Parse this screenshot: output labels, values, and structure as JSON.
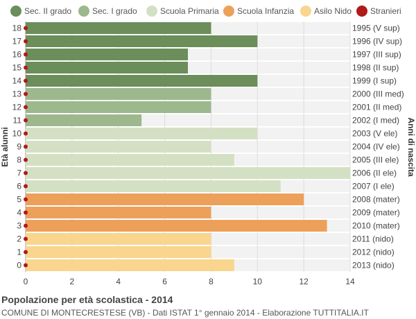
{
  "chart_data": {
    "type": "bar",
    "orientation": "horizontal",
    "title": "Popolazione per età scolastica - 2014",
    "subtitle": "COMUNE DI MONTECRESTESE (VB) - Dati ISTAT 1° gennaio 2014 - Elaborazione TUTTITALIA.IT",
    "ylabel_left": "Età alunni",
    "ylabel_right": "Anni di nascita",
    "xlim": [
      0,
      14
    ],
    "x_ticks": [
      0,
      2,
      4,
      6,
      8,
      10,
      12,
      14
    ],
    "grid": true,
    "legend_position": "top",
    "legend": [
      {
        "name": "Sec. II grado",
        "color": "#6b8e5a"
      },
      {
        "name": "Sec. I grado",
        "color": "#9cb88c"
      },
      {
        "name": "Scuola Primaria",
        "color": "#d4e0c4"
      },
      {
        "name": "Scuola Infanzia",
        "color": "#eda05a"
      },
      {
        "name": "Asilo Nido",
        "color": "#fad58e"
      },
      {
        "name": "Stranieri",
        "color": "#b01a1a"
      }
    ],
    "rows": [
      {
        "age": "18",
        "birth": "1995 (V sup)",
        "value": 8,
        "group": 0,
        "stranieri": 0
      },
      {
        "age": "17",
        "birth": "1996 (IV sup)",
        "value": 10,
        "group": 0,
        "stranieri": 0
      },
      {
        "age": "16",
        "birth": "1997 (III sup)",
        "value": 7,
        "group": 0,
        "stranieri": 0
      },
      {
        "age": "15",
        "birth": "1998 (II sup)",
        "value": 7,
        "group": 0,
        "stranieri": 0
      },
      {
        "age": "14",
        "birth": "1999 (I sup)",
        "value": 10,
        "group": 0,
        "stranieri": 0
      },
      {
        "age": "13",
        "birth": "2000 (III med)",
        "value": 8,
        "group": 1,
        "stranieri": 0
      },
      {
        "age": "12",
        "birth": "2001 (II med)",
        "value": 8,
        "group": 1,
        "stranieri": 0
      },
      {
        "age": "11",
        "birth": "2002 (I med)",
        "value": 5,
        "group": 1,
        "stranieri": 0
      },
      {
        "age": "10",
        "birth": "2003 (V ele)",
        "value": 10,
        "group": 2,
        "stranieri": 0
      },
      {
        "age": "9",
        "birth": "2004 (IV ele)",
        "value": 8,
        "group": 2,
        "stranieri": 0
      },
      {
        "age": "8",
        "birth": "2005 (III ele)",
        "value": 9,
        "group": 2,
        "stranieri": 0
      },
      {
        "age": "7",
        "birth": "2006 (II ele)",
        "value": 14,
        "group": 2,
        "stranieri": 0
      },
      {
        "age": "6",
        "birth": "2007 (I ele)",
        "value": 11,
        "group": 2,
        "stranieri": 0
      },
      {
        "age": "5",
        "birth": "2008 (mater)",
        "value": 12,
        "group": 3,
        "stranieri": 0
      },
      {
        "age": "4",
        "birth": "2009 (mater)",
        "value": 8,
        "group": 3,
        "stranieri": 0
      },
      {
        "age": "3",
        "birth": "2010 (mater)",
        "value": 13,
        "group": 3,
        "stranieri": 0
      },
      {
        "age": "2",
        "birth": "2011 (nido)",
        "value": 8,
        "group": 4,
        "stranieri": 0
      },
      {
        "age": "1",
        "birth": "2012 (nido)",
        "value": 8,
        "group": 4,
        "stranieri": 0
      },
      {
        "age": "0",
        "birth": "2013 (nido)",
        "value": 9,
        "group": 4,
        "stranieri": 0
      }
    ]
  }
}
